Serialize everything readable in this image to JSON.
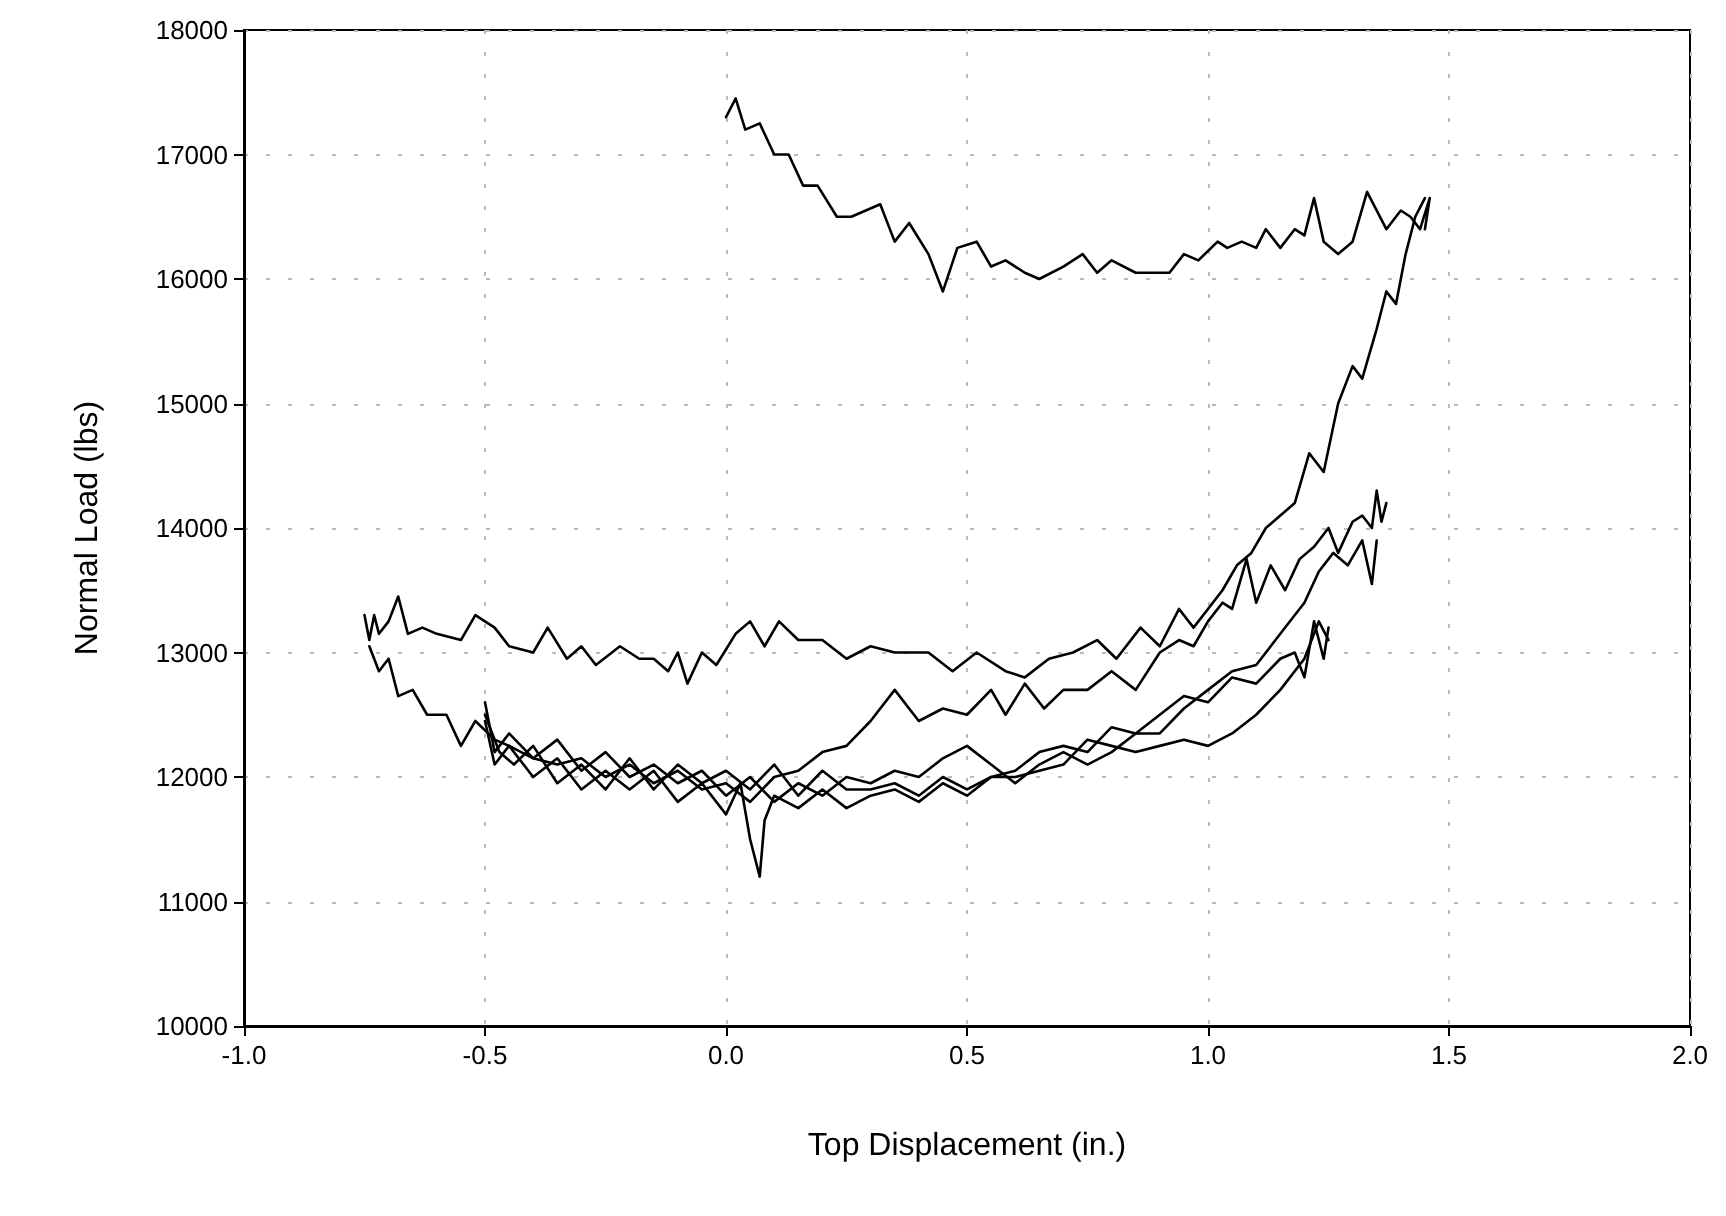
{
  "chart_data": {
    "type": "line",
    "xlabel": "Top Displacement (in.)",
    "ylabel": "Normal Load (lbs)",
    "xlim": [
      -1.0,
      2.0
    ],
    "xticks": [
      {
        "value": -1.0,
        "label": "-1.0"
      },
      -0.5,
      {
        "value": 0,
        "label": "0.0"
      },
      0.5,
      {
        "value": 1.0,
        "label": "1.0"
      },
      1.5,
      {
        "value": 2.0,
        "label": "2.0"
      }
    ],
    "ylim": [
      10000,
      18000
    ],
    "yticks": [
      10000,
      11000,
      12000,
      13000,
      14000,
      15000,
      16000,
      17000,
      18000
    ],
    "grid": true,
    "marker": "none",
    "line_style": "solid",
    "series": [
      {
        "color": "#000000",
        "x": [
          0.0,
          0.02,
          0.04,
          0.07,
          0.1,
          0.13,
          0.16,
          0.19,
          0.23,
          0.26,
          0.32,
          0.35,
          0.38,
          0.42,
          0.45,
          0.48,
          0.52,
          0.55,
          0.58,
          0.62,
          0.65,
          0.7,
          0.74,
          0.77,
          0.8,
          0.85,
          0.92,
          0.95,
          0.98,
          1.02,
          1.04,
          1.07,
          1.1,
          1.12,
          1.15,
          1.18,
          1.2,
          1.22,
          1.24,
          1.27,
          1.3,
          1.33,
          1.37,
          1.4,
          1.42,
          1.44,
          1.46,
          1.45
        ],
        "values": [
          17300,
          17450,
          17200,
          17250,
          17000,
          17000,
          16750,
          16750,
          16500,
          16500,
          16600,
          16300,
          16450,
          16200,
          15900,
          16250,
          16300,
          16100,
          16150,
          16050,
          16000,
          16100,
          16200,
          16050,
          16150,
          16050,
          16050,
          16200,
          16150,
          16300,
          16250,
          16300,
          16250,
          16400,
          16250,
          16400,
          16350,
          16650,
          16300,
          16200,
          16300,
          16700,
          16400,
          16550,
          16500,
          16400,
          16650,
          16400
        ]
      },
      {
        "color": "#000000",
        "x": [
          -0.75,
          -0.74,
          -0.73,
          -0.72,
          -0.7,
          -0.68,
          -0.66,
          -0.63,
          -0.6,
          -0.55,
          -0.52,
          -0.48,
          -0.45,
          -0.4,
          -0.37,
          -0.33,
          -0.3,
          -0.27,
          -0.22,
          -0.18,
          -0.15,
          -0.12,
          -0.1,
          -0.08,
          -0.05,
          -0.02,
          0.02,
          0.05,
          0.08,
          0.11,
          0.15,
          0.2,
          0.25,
          0.3,
          0.35,
          0.42,
          0.47,
          0.52,
          0.58,
          0.62,
          0.67,
          0.72,
          0.77,
          0.81,
          0.86,
          0.9,
          0.94,
          0.97,
          1.0,
          1.03,
          1.06,
          1.09,
          1.12,
          1.15,
          1.18,
          1.21,
          1.24,
          1.27,
          1.3,
          1.32,
          1.35,
          1.37,
          1.39,
          1.41,
          1.43,
          1.45
        ],
        "values": [
          13300,
          13100,
          13300,
          13150,
          13250,
          13450,
          13150,
          13200,
          13150,
          13100,
          13300,
          13200,
          13050,
          13000,
          13200,
          12950,
          13050,
          12900,
          13050,
          12950,
          12950,
          12850,
          13000,
          12750,
          13000,
          12900,
          13150,
          13250,
          13050,
          13250,
          13100,
          13100,
          12950,
          13050,
          13000,
          13000,
          12850,
          13000,
          12850,
          12800,
          12950,
          13000,
          13100,
          12950,
          13200,
          13050,
          13350,
          13200,
          13350,
          13500,
          13700,
          13800,
          14000,
          14100,
          14200,
          14600,
          14450,
          15000,
          15300,
          15200,
          15600,
          15900,
          15800,
          16200,
          16500,
          16650
        ]
      },
      {
        "color": "#000000",
        "x": [
          -0.74,
          -0.72,
          -0.7,
          -0.68,
          -0.65,
          -0.62,
          -0.58,
          -0.55,
          -0.52,
          -0.48,
          -0.45,
          -0.4,
          -0.35,
          -0.3,
          -0.25,
          -0.2,
          -0.15,
          -0.1,
          -0.05,
          0.0,
          0.05,
          0.1,
          0.15,
          0.2,
          0.25,
          0.3,
          0.35,
          0.4,
          0.45,
          0.5,
          0.55,
          0.58,
          0.62,
          0.66,
          0.7,
          0.75,
          0.8,
          0.85,
          0.9,
          0.94,
          0.97,
          1.0,
          1.03,
          1.05,
          1.08,
          1.1,
          1.13,
          1.16,
          1.19,
          1.22,
          1.25,
          1.27,
          1.3,
          1.32,
          1.34,
          1.35,
          1.36,
          1.37
        ],
        "values": [
          13050,
          12850,
          12950,
          12650,
          12700,
          12500,
          12500,
          12250,
          12450,
          12300,
          12250,
          12150,
          12100,
          12150,
          12000,
          12100,
          11950,
          12050,
          11900,
          11950,
          11800,
          12000,
          12050,
          12200,
          12250,
          12450,
          12700,
          12450,
          12550,
          12500,
          12700,
          12500,
          12750,
          12550,
          12700,
          12700,
          12850,
          12700,
          13000,
          13100,
          13050,
          13250,
          13400,
          13350,
          13750,
          13400,
          13700,
          13500,
          13750,
          13850,
          14000,
          13800,
          14050,
          14100,
          14000,
          14300,
          14050,
          14200
        ]
      },
      {
        "color": "#000000",
        "x": [
          -0.5,
          -0.48,
          -0.45,
          -0.4,
          -0.35,
          -0.3,
          -0.25,
          -0.2,
          -0.15,
          -0.1,
          -0.05,
          0.0,
          0.05,
          0.1,
          0.15,
          0.2,
          0.25,
          0.3,
          0.35,
          0.4,
          0.45,
          0.5,
          0.55,
          0.6,
          0.65,
          0.7,
          0.75,
          0.8,
          0.85,
          0.9,
          0.95,
          1.0,
          1.05,
          1.1,
          1.15,
          1.2,
          1.23,
          1.26,
          1.29,
          1.32,
          1.34,
          1.35
        ],
        "values": [
          12600,
          12200,
          12350,
          12150,
          12300,
          12050,
          12200,
          12000,
          12100,
          11950,
          12050,
          11850,
          12000,
          11800,
          11950,
          11850,
          12000,
          11950,
          12050,
          12000,
          12150,
          12250,
          12100,
          11950,
          12100,
          12200,
          12100,
          12200,
          12350,
          12350,
          12550,
          12700,
          12850,
          12900,
          13150,
          13400,
          13650,
          13800,
          13700,
          13900,
          13550,
          13900
        ]
      },
      {
        "color": "#000000",
        "x": [
          -0.5,
          -0.48,
          -0.45,
          -0.4,
          -0.35,
          -0.3,
          -0.25,
          -0.2,
          -0.15,
          -0.1,
          -0.05,
          0.0,
          0.03,
          0.05,
          0.07,
          0.08,
          0.1,
          0.15,
          0.2,
          0.25,
          0.3,
          0.35,
          0.4,
          0.45,
          0.5,
          0.55,
          0.6,
          0.65,
          0.7,
          0.75,
          0.8,
          0.85,
          0.9,
          0.95,
          1.0,
          1.05,
          1.1,
          1.15,
          1.18,
          1.2,
          1.22,
          1.24,
          1.25
        ],
        "values": [
          12450,
          12100,
          12250,
          12000,
          12150,
          11900,
          12050,
          11900,
          12050,
          11800,
          11950,
          11700,
          11950,
          11500,
          11200,
          11650,
          11850,
          11750,
          11900,
          11750,
          11850,
          11900,
          11800,
          11950,
          11850,
          12000,
          12050,
          12200,
          12250,
          12200,
          12400,
          12350,
          12500,
          12650,
          12600,
          12800,
          12750,
          12950,
          13000,
          12800,
          13250,
          12950,
          13200
        ]
      },
      {
        "color": "#000000",
        "x": [
          -0.5,
          -0.47,
          -0.44,
          -0.4,
          -0.35,
          -0.3,
          -0.25,
          -0.2,
          -0.15,
          -0.1,
          -0.05,
          0.0,
          0.05,
          0.1,
          0.15,
          0.2,
          0.25,
          0.3,
          0.35,
          0.4,
          0.45,
          0.5,
          0.55,
          0.6,
          0.65,
          0.7,
          0.75,
          0.8,
          0.85,
          0.9,
          0.95,
          1.0,
          1.05,
          1.1,
          1.15,
          1.2,
          1.23,
          1.25
        ],
        "values": [
          12500,
          12200,
          12100,
          12250,
          11950,
          12100,
          11900,
          12150,
          11900,
          12100,
          11950,
          12050,
          11900,
          12100,
          11850,
          12050,
          11900,
          11900,
          11950,
          11850,
          12000,
          11900,
          12000,
          12000,
          12050,
          12100,
          12300,
          12250,
          12200,
          12250,
          12300,
          12250,
          12350,
          12500,
          12700,
          12950,
          13250,
          13100
        ]
      }
    ]
  }
}
